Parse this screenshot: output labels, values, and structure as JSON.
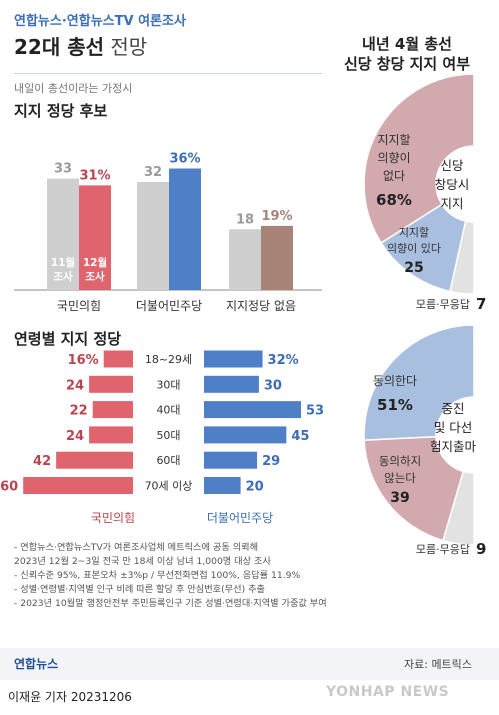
{
  "header": {
    "subtitle": "연합뉴스·연합뉴스TV 여론조사",
    "title_bold": "22대 총선",
    "title_light": " 전망"
  },
  "section1": {
    "assumption": "내일이 총선이라는 가정시",
    "title": "지지 정당 후보"
  },
  "section2": {
    "title": "연령별 지지 정당"
  },
  "right_top_title": [
    "내년 4월 총선",
    "신당 창당 지지 여부"
  ],
  "notes": [
    "- 연합뉴스·연합뉴스TV가 여론조사업체 메트릭스에 공동 의뢰해",
    "  2023년 12월 2~3일 전국 만 18세 이상 남녀 1,000명 대상 조사",
    "- 신뢰수준 95%, 표본오차 ±3%p / 무선전화면접 100%, 응답률 11.9%",
    "- 성별·연령별·지역별 인구 비례 따른 할당 후 안심번호(무선) 추출",
    "- 2023년 10월말 행정안전부 주민등록인구 기준 성별·연령대·지역별 가중값 부여"
  ],
  "footer": {
    "brand": "연합뉴스",
    "source": "자료: 메트릭스",
    "credit": "이재윤 기자  20231206",
    "watermark": "YONHAP NEWS"
  },
  "colors": {
    "nov": "#cfcfcf",
    "dec_ppp": "#e0646e",
    "dec_dem": "#4f7fc6",
    "dec_none": "#a88478",
    "ppp_text": "#b8454f",
    "dem_text": "#3d6db3",
    "donut_pink": "#d3a9b0",
    "donut_blue": "#a9bfe0",
    "donut_gray": "#e2e2e2"
  },
  "chart_data": [
    {
      "type": "bar",
      "title": "지지 정당 후보",
      "categories": [
        "국민의힘",
        "더불어민주당",
        "지지정당 없음"
      ],
      "series": [
        {
          "name": "11월 조사",
          "values": [
            33,
            32,
            18
          ],
          "labels": [
            "33",
            "32",
            "18"
          ]
        },
        {
          "name": "12월 조사",
          "values": [
            31,
            36,
            19
          ],
          "labels": [
            "31%",
            "36%",
            "19%"
          ]
        }
      ],
      "legend": [
        "11월",
        "조사",
        "12월",
        "조사"
      ],
      "ylim": [
        0,
        40
      ]
    },
    {
      "type": "bar",
      "title": "연령별 지지 정당",
      "orientation": "horizontal-butterfly",
      "categories": [
        "18~29세",
        "30대",
        "40대",
        "50대",
        "60대",
        "70세 이상"
      ],
      "series": [
        {
          "name": "국민의힘",
          "values": [
            16,
            24,
            22,
            24,
            42,
            60
          ],
          "labels": [
            "16%",
            "24",
            "22",
            "24",
            "42",
            "60"
          ]
        },
        {
          "name": "더불어민주당",
          "values": [
            32,
            30,
            53,
            45,
            29,
            20
          ],
          "labels": [
            "32%",
            "30",
            "53",
            "45",
            "29",
            "20"
          ]
        }
      ]
    },
    {
      "type": "pie",
      "title": "내년 4월 총선 신당 창당 지지 여부",
      "center_label": [
        "신당",
        "창당시",
        "지지"
      ],
      "slices": [
        {
          "name": "지지할 의향이 없다",
          "label_lines": [
            "지지할",
            "의향이",
            "없다"
          ],
          "value": 68,
          "value_label": "68%"
        },
        {
          "name": "지지할 의향이 있다",
          "label_lines": [
            "지지할",
            "의향이 있다"
          ],
          "value": 25,
          "value_label": "25"
        },
        {
          "name": "모름·무응답",
          "label_lines": [
            "모름·무응답"
          ],
          "value": 7,
          "value_label": "7"
        }
      ]
    },
    {
      "type": "pie",
      "title": "중진 및 다선 험지출마",
      "center_label": [
        "중진",
        "및 다선",
        "험지출마"
      ],
      "slices": [
        {
          "name": "동의한다",
          "label_lines": [
            "동의한다"
          ],
          "value": 51,
          "value_label": "51%"
        },
        {
          "name": "동의하지 않는다",
          "label_lines": [
            "동의하지",
            "않는다"
          ],
          "value": 39,
          "value_label": "39"
        },
        {
          "name": "모름·무응답",
          "label_lines": [
            "모름·무응답"
          ],
          "value": 9,
          "value_label": "9"
        }
      ]
    }
  ]
}
